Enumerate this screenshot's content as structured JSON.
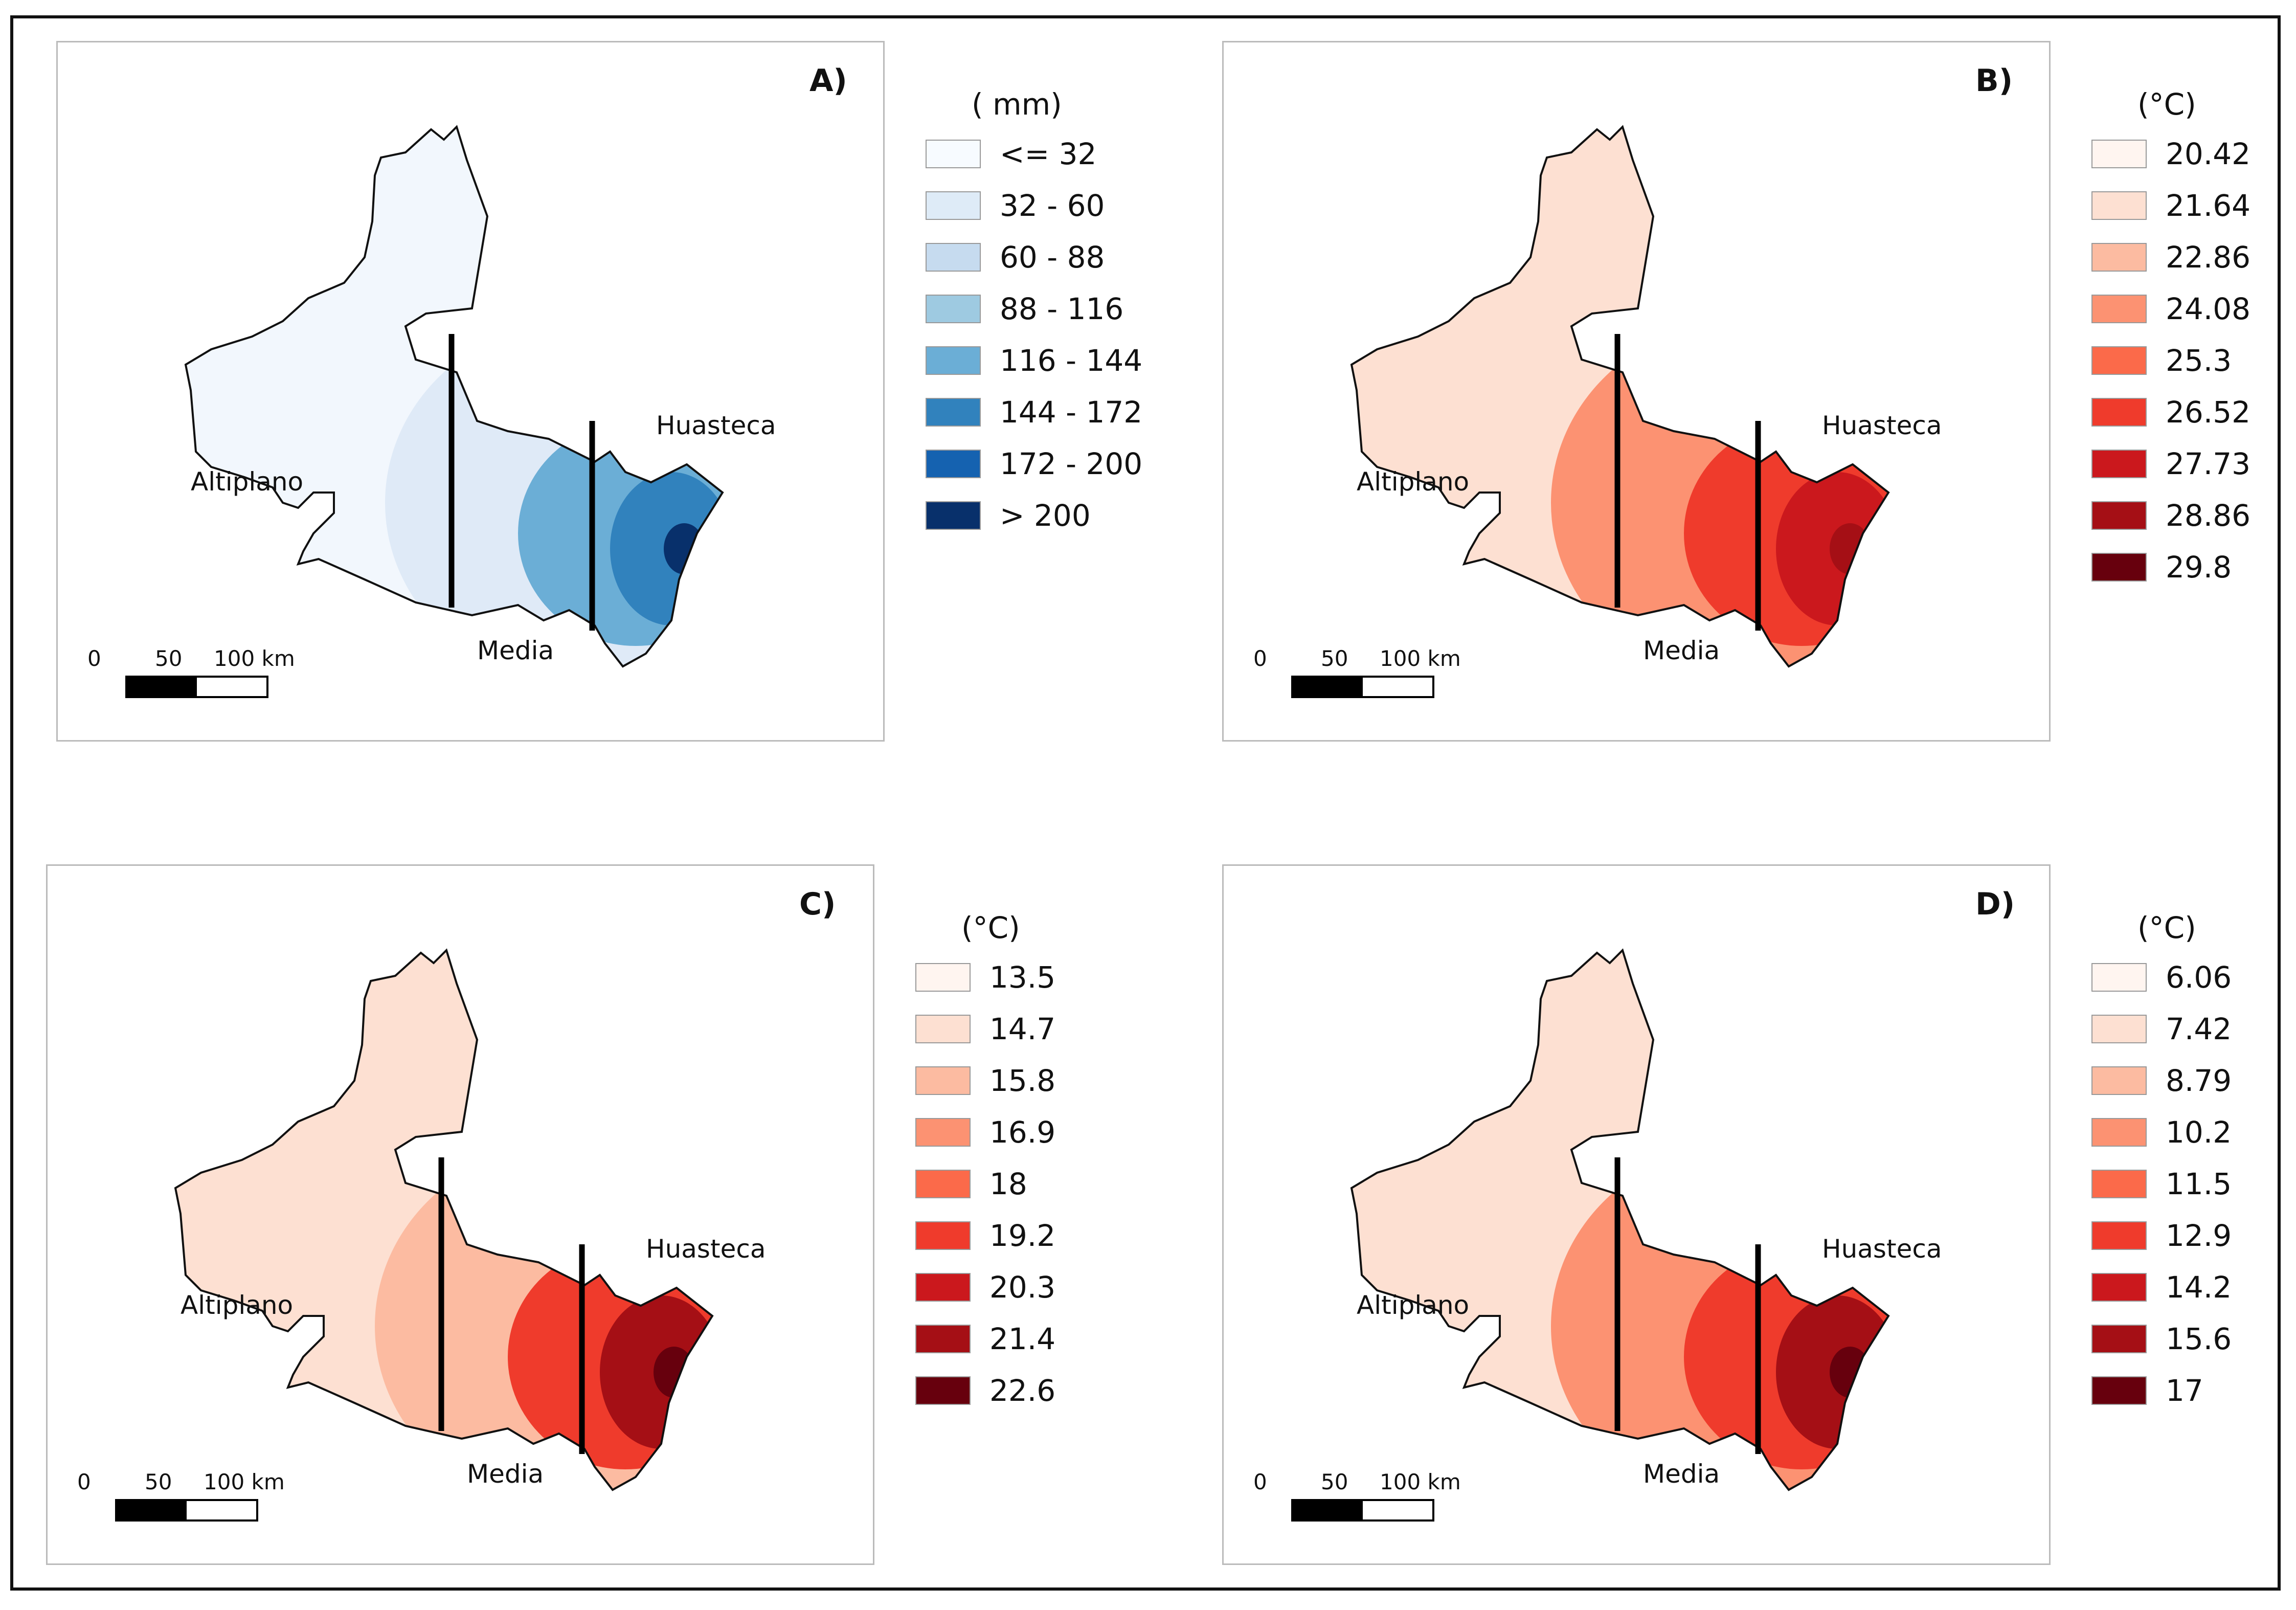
{
  "panels": [
    {
      "letter": "A)",
      "legend_title": "( mm)",
      "legend": [
        {
          "label": "<= 32",
          "color": "#f7fbff"
        },
        {
          "label": "32 - 60",
          "color": "#deebf7"
        },
        {
          "label": "60 - 88",
          "color": "#c6dbef"
        },
        {
          "label": "88 - 116",
          "color": "#9ecae1"
        },
        {
          "label": "116 - 144",
          "color": "#6baed6"
        },
        {
          "label": "144 - 172",
          "color": "#3182bd"
        },
        {
          "label": "172 - 200",
          "color": "#1562b0"
        },
        {
          "label": "> 200",
          "color": "#08306b"
        }
      ],
      "zone_colors": [
        "#f2f7fd",
        "#dfeaf7",
        "#6baed6",
        "#3182bd",
        "#08306b"
      ],
      "regions": {
        "altiplano": "Altiplano",
        "media": "Media",
        "huasteca": "Huasteca"
      },
      "scale": {
        "t0": "0",
        "t50": "50",
        "t100": "100 km"
      }
    },
    {
      "letter": "B)",
      "legend_title": "(°C)",
      "legend": [
        {
          "label": "20.42",
          "color": "#fff5f0"
        },
        {
          "label": "21.64",
          "color": "#fde0d2"
        },
        {
          "label": "22.86",
          "color": "#fcbba1"
        },
        {
          "label": "24.08",
          "color": "#fc9272"
        },
        {
          "label": "25.3",
          "color": "#fb6a4a"
        },
        {
          "label": "26.52",
          "color": "#ef3b2c"
        },
        {
          "label": "27.73",
          "color": "#cb181d"
        },
        {
          "label": "28.86",
          "color": "#a50f15"
        },
        {
          "label": "29.8",
          "color": "#67000d"
        }
      ],
      "zone_colors": [
        "#fde0d2",
        "#fc9272",
        "#ef3b2c",
        "#cb181d",
        "#a50f15"
      ],
      "regions": {
        "altiplano": "Altiplano",
        "media": "Media",
        "huasteca": "Huasteca"
      },
      "scale": {
        "t0": "0",
        "t50": "50",
        "t100": "100 km"
      }
    },
    {
      "letter": "C)",
      "legend_title": "(°C)",
      "legend": [
        {
          "label": "13.5",
          "color": "#fff5f0"
        },
        {
          "label": "14.7",
          "color": "#fde0d2"
        },
        {
          "label": "15.8",
          "color": "#fcbba1"
        },
        {
          "label": "16.9",
          "color": "#fc9272"
        },
        {
          "label": "18",
          "color": "#fb6a4a"
        },
        {
          "label": "19.2",
          "color": "#ef3b2c"
        },
        {
          "label": "20.3",
          "color": "#cb181d"
        },
        {
          "label": "21.4",
          "color": "#a50f15"
        },
        {
          "label": "22.6",
          "color": "#67000d"
        }
      ],
      "zone_colors": [
        "#fde0d2",
        "#fcbba1",
        "#ef3b2c",
        "#a50f15",
        "#67000d"
      ],
      "regions": {
        "altiplano": "Altiplano",
        "media": "Media",
        "huasteca": "Huasteca"
      },
      "scale": {
        "t0": "0",
        "t50": "50",
        "t100": "100 km"
      }
    },
    {
      "letter": "D)",
      "legend_title": "(°C)",
      "legend": [
        {
          "label": "6.06",
          "color": "#fff5f0"
        },
        {
          "label": "7.42",
          "color": "#fde0d2"
        },
        {
          "label": "8.79",
          "color": "#fcbba1"
        },
        {
          "label": "10.2",
          "color": "#fc9272"
        },
        {
          "label": "11.5",
          "color": "#fb6a4a"
        },
        {
          "label": "12.9",
          "color": "#ef3b2c"
        },
        {
          "label": "14.2",
          "color": "#cb181d"
        },
        {
          "label": "15.6",
          "color": "#a50f15"
        },
        {
          "label": "17",
          "color": "#67000d"
        }
      ],
      "zone_colors": [
        "#fde0d2",
        "#fc9272",
        "#ef3b2c",
        "#a50f15",
        "#67000d"
      ],
      "regions": {
        "altiplano": "Altiplano",
        "media": "Media",
        "huasteca": "Huasteca"
      },
      "scale": {
        "t0": "0",
        "t50": "50",
        "t100": "100 km"
      }
    }
  ]
}
